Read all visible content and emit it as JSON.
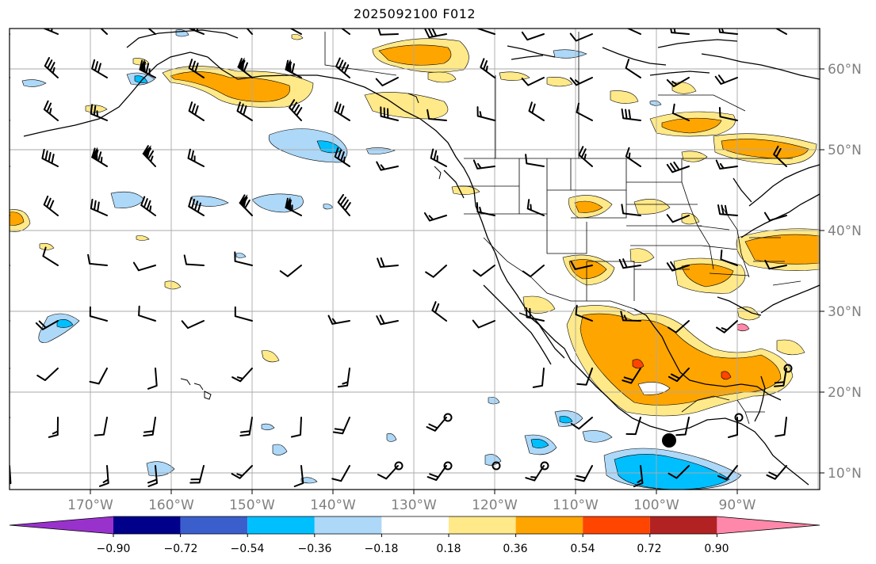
{
  "title": "2025092100 F012",
  "map": {
    "lon_labels": [
      "170°W",
      "160°W",
      "150°W",
      "140°W",
      "130°W",
      "120°W",
      "110°W",
      "100°W",
      "90°W"
    ],
    "lat_labels": [
      "60°N",
      "50°N",
      "40°N",
      "30°N",
      "20°N",
      "10°N"
    ],
    "lon_range": [
      -180,
      -80
    ],
    "lat_range": [
      8,
      65
    ],
    "gridlines": true,
    "features": [
      "coastlines",
      "us-state-borders",
      "country-borders",
      "wind-barbs",
      "anomaly-contours"
    ],
    "marker": {
      "type": "filled-circle",
      "lon": -99.3,
      "lat": 14.2
    }
  },
  "colorbar": {
    "tick_labels": [
      "−0.90",
      "−0.72",
      "−0.54",
      "−0.36",
      "−0.18",
      "0.18",
      "0.36",
      "0.54",
      "0.72",
      "0.90"
    ],
    "colors": [
      "#9932cc",
      "#00008b",
      "#3a5fcd",
      "#00bfff",
      "#add8f8",
      "#ffffff",
      "#ffe989",
      "#ffa500",
      "#ff4500",
      "#b22222",
      "#ff88aa"
    ],
    "extend": "both"
  }
}
